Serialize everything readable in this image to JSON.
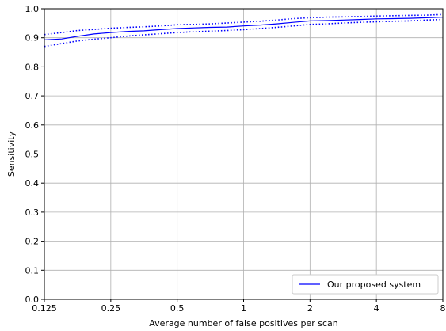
{
  "chart_data": {
    "type": "line",
    "xlabel": "Average number of false positives per scan",
    "ylabel": "Sensitivity",
    "x_scale": "log2",
    "xlim": [
      0.125,
      8
    ],
    "ylim": [
      0.0,
      1.0
    ],
    "x_ticks": [
      0.125,
      0.25,
      0.5,
      1,
      2,
      4,
      8
    ],
    "x_tick_labels": [
      "0.125",
      "0.25",
      "0.5",
      "1",
      "2",
      "4",
      "8"
    ],
    "y_ticks": [
      0.0,
      0.1,
      0.2,
      0.3,
      0.4,
      0.5,
      0.6,
      0.7,
      0.8,
      0.9,
      1.0
    ],
    "y_tick_labels": [
      "0.0",
      "0.1",
      "0.2",
      "0.3",
      "0.4",
      "0.5",
      "0.6",
      "0.7",
      "0.8",
      "0.9",
      "1.0"
    ],
    "grid": true,
    "legend_position": "bottom-right",
    "series": [
      {
        "name": "Our proposed system",
        "style": "solid",
        "color": "#0000ff",
        "x": [
          0.125,
          0.15,
          0.177,
          0.21,
          0.25,
          0.3,
          0.354,
          0.42,
          0.5,
          0.6,
          0.707,
          0.84,
          1,
          1.19,
          1.41,
          1.68,
          2,
          2.38,
          2.83,
          3.36,
          4,
          4.76,
          5.66,
          6.73,
          8
        ],
        "values": [
          0.893,
          0.896,
          0.905,
          0.913,
          0.918,
          0.922,
          0.924,
          0.928,
          0.932,
          0.934,
          0.936,
          0.937,
          0.941,
          0.944,
          0.948,
          0.953,
          0.958,
          0.959,
          0.961,
          0.963,
          0.965,
          0.966,
          0.967,
          0.969,
          0.971
        ]
      },
      {
        "style": "dotted",
        "color": "#0000ff",
        "x": [
          0.125,
          0.15,
          0.177,
          0.21,
          0.25,
          0.3,
          0.354,
          0.42,
          0.5,
          0.6,
          0.707,
          0.84,
          1,
          1.19,
          1.41,
          1.68,
          2,
          2.38,
          2.83,
          3.36,
          4,
          4.76,
          5.66,
          6.73,
          8
        ],
        "values": [
          0.911,
          0.918,
          0.925,
          0.929,
          0.933,
          0.936,
          0.938,
          0.941,
          0.945,
          0.946,
          0.948,
          0.951,
          0.954,
          0.957,
          0.961,
          0.966,
          0.969,
          0.971,
          0.972,
          0.973,
          0.975,
          0.976,
          0.977,
          0.978,
          0.98
        ]
      },
      {
        "style": "dotted",
        "color": "#0000ff",
        "x": [
          0.125,
          0.15,
          0.177,
          0.21,
          0.25,
          0.3,
          0.354,
          0.42,
          0.5,
          0.6,
          0.707,
          0.84,
          1,
          1.19,
          1.41,
          1.68,
          2,
          2.38,
          2.83,
          3.36,
          4,
          4.76,
          5.66,
          6.73,
          8
        ],
        "values": [
          0.87,
          0.88,
          0.889,
          0.895,
          0.9,
          0.906,
          0.91,
          0.914,
          0.918,
          0.921,
          0.923,
          0.925,
          0.928,
          0.932,
          0.936,
          0.941,
          0.946,
          0.948,
          0.951,
          0.953,
          0.955,
          0.957,
          0.958,
          0.961,
          0.963
        ]
      }
    ]
  }
}
